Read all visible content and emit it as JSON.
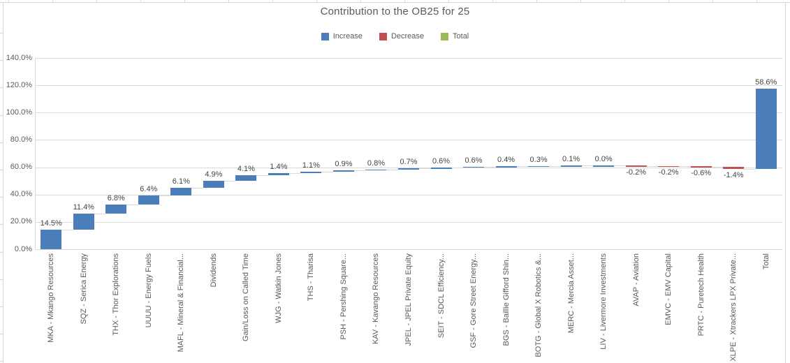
{
  "chart_data": {
    "type": "bar",
    "subtype": "waterfall",
    "title": "Contribution to the OB25 for 25",
    "legend_position": "top",
    "grid": true,
    "ylim": [
      0,
      140
    ],
    "y_ticks": [
      "0.0%",
      "20.0%",
      "40.0%",
      "60.0%",
      "80.0%",
      "100.0%",
      "120.0%",
      "140.0%"
    ],
    "colors": {
      "increase": "#4a7dba",
      "decrease": "#c0504d",
      "total_legend": "#9bbb59",
      "total_bar": "#4a7dba",
      "gridline": "#d9d9d9",
      "axis_text": "#595959",
      "data_label": "#444444",
      "title_text": "#595959"
    },
    "legend": [
      {
        "label": "Increase",
        "color_key": "increase"
      },
      {
        "label": "Decrease",
        "color_key": "decrease"
      },
      {
        "label": "Total",
        "color_key": "total_legend"
      }
    ],
    "items": [
      {
        "category": "MKA - Mkango Resources",
        "value": 14.5,
        "label": "14.5%",
        "kind": "increase"
      },
      {
        "category": "SQZ - Serica Energy",
        "value": 11.4,
        "label": "11.4%",
        "kind": "increase"
      },
      {
        "category": "THX - Thor Explorations",
        "value": 6.8,
        "label": "6.8%",
        "kind": "increase"
      },
      {
        "category": "UUUU - Energy Fuels",
        "value": 6.4,
        "label": "6.4%",
        "kind": "increase"
      },
      {
        "category": "MAFL - Mineral & Financial...",
        "value": 6.1,
        "label": "6.1%",
        "kind": "increase"
      },
      {
        "category": "Dividends",
        "value": 4.9,
        "label": "4.9%",
        "kind": "increase"
      },
      {
        "category": "Gain/Loss on Called Time",
        "value": 4.1,
        "label": "4.1%",
        "kind": "increase"
      },
      {
        "category": "WJG - Watkin Jones",
        "value": 1.4,
        "label": "1.4%",
        "kind": "increase"
      },
      {
        "category": "THS - Tharisa",
        "value": 1.1,
        "label": "1.1%",
        "kind": "increase"
      },
      {
        "category": "PSH - Pershing Square...",
        "value": 0.9,
        "label": "0.9%",
        "kind": "increase"
      },
      {
        "category": "KAV - Kavango Resources",
        "value": 0.8,
        "label": "0.8%",
        "kind": "increase"
      },
      {
        "category": "JPEL - JPEL Private Equity",
        "value": 0.7,
        "label": "0.7%",
        "kind": "increase"
      },
      {
        "category": "SEIT - SDCL Efficiency...",
        "value": 0.6,
        "label": "0.6%",
        "kind": "increase"
      },
      {
        "category": "GSF - Gore Street Energy...",
        "value": 0.6,
        "label": "0.6%",
        "kind": "increase"
      },
      {
        "category": "BGS - Baillie Gifford Shin...",
        "value": 0.4,
        "label": "0.4%",
        "kind": "increase"
      },
      {
        "category": "BOTG - Global X Robotics &...",
        "value": 0.3,
        "label": "0.3%",
        "kind": "increase"
      },
      {
        "category": "MERC - Mercia Asset...",
        "value": 0.1,
        "label": "0.1%",
        "kind": "increase"
      },
      {
        "category": "LIV - Livermore Investments",
        "value": 0.0,
        "label": "0.0%",
        "kind": "increase"
      },
      {
        "category": "AVAP - Aviation",
        "value": -0.2,
        "label": "-0.2%",
        "kind": "decrease"
      },
      {
        "category": "EMVC - EMV Capital",
        "value": -0.2,
        "label": "-0.2%",
        "kind": "decrease"
      },
      {
        "category": "PRTC - Puretech Health",
        "value": -0.6,
        "label": "-0.6%",
        "kind": "decrease"
      },
      {
        "category": "XLPE - Xtrackers LPX Private...",
        "value": -1.4,
        "label": "-1.4%",
        "kind": "decrease"
      },
      {
        "category": "Total",
        "value": 58.6,
        "label": "58.6%",
        "kind": "total"
      }
    ]
  }
}
